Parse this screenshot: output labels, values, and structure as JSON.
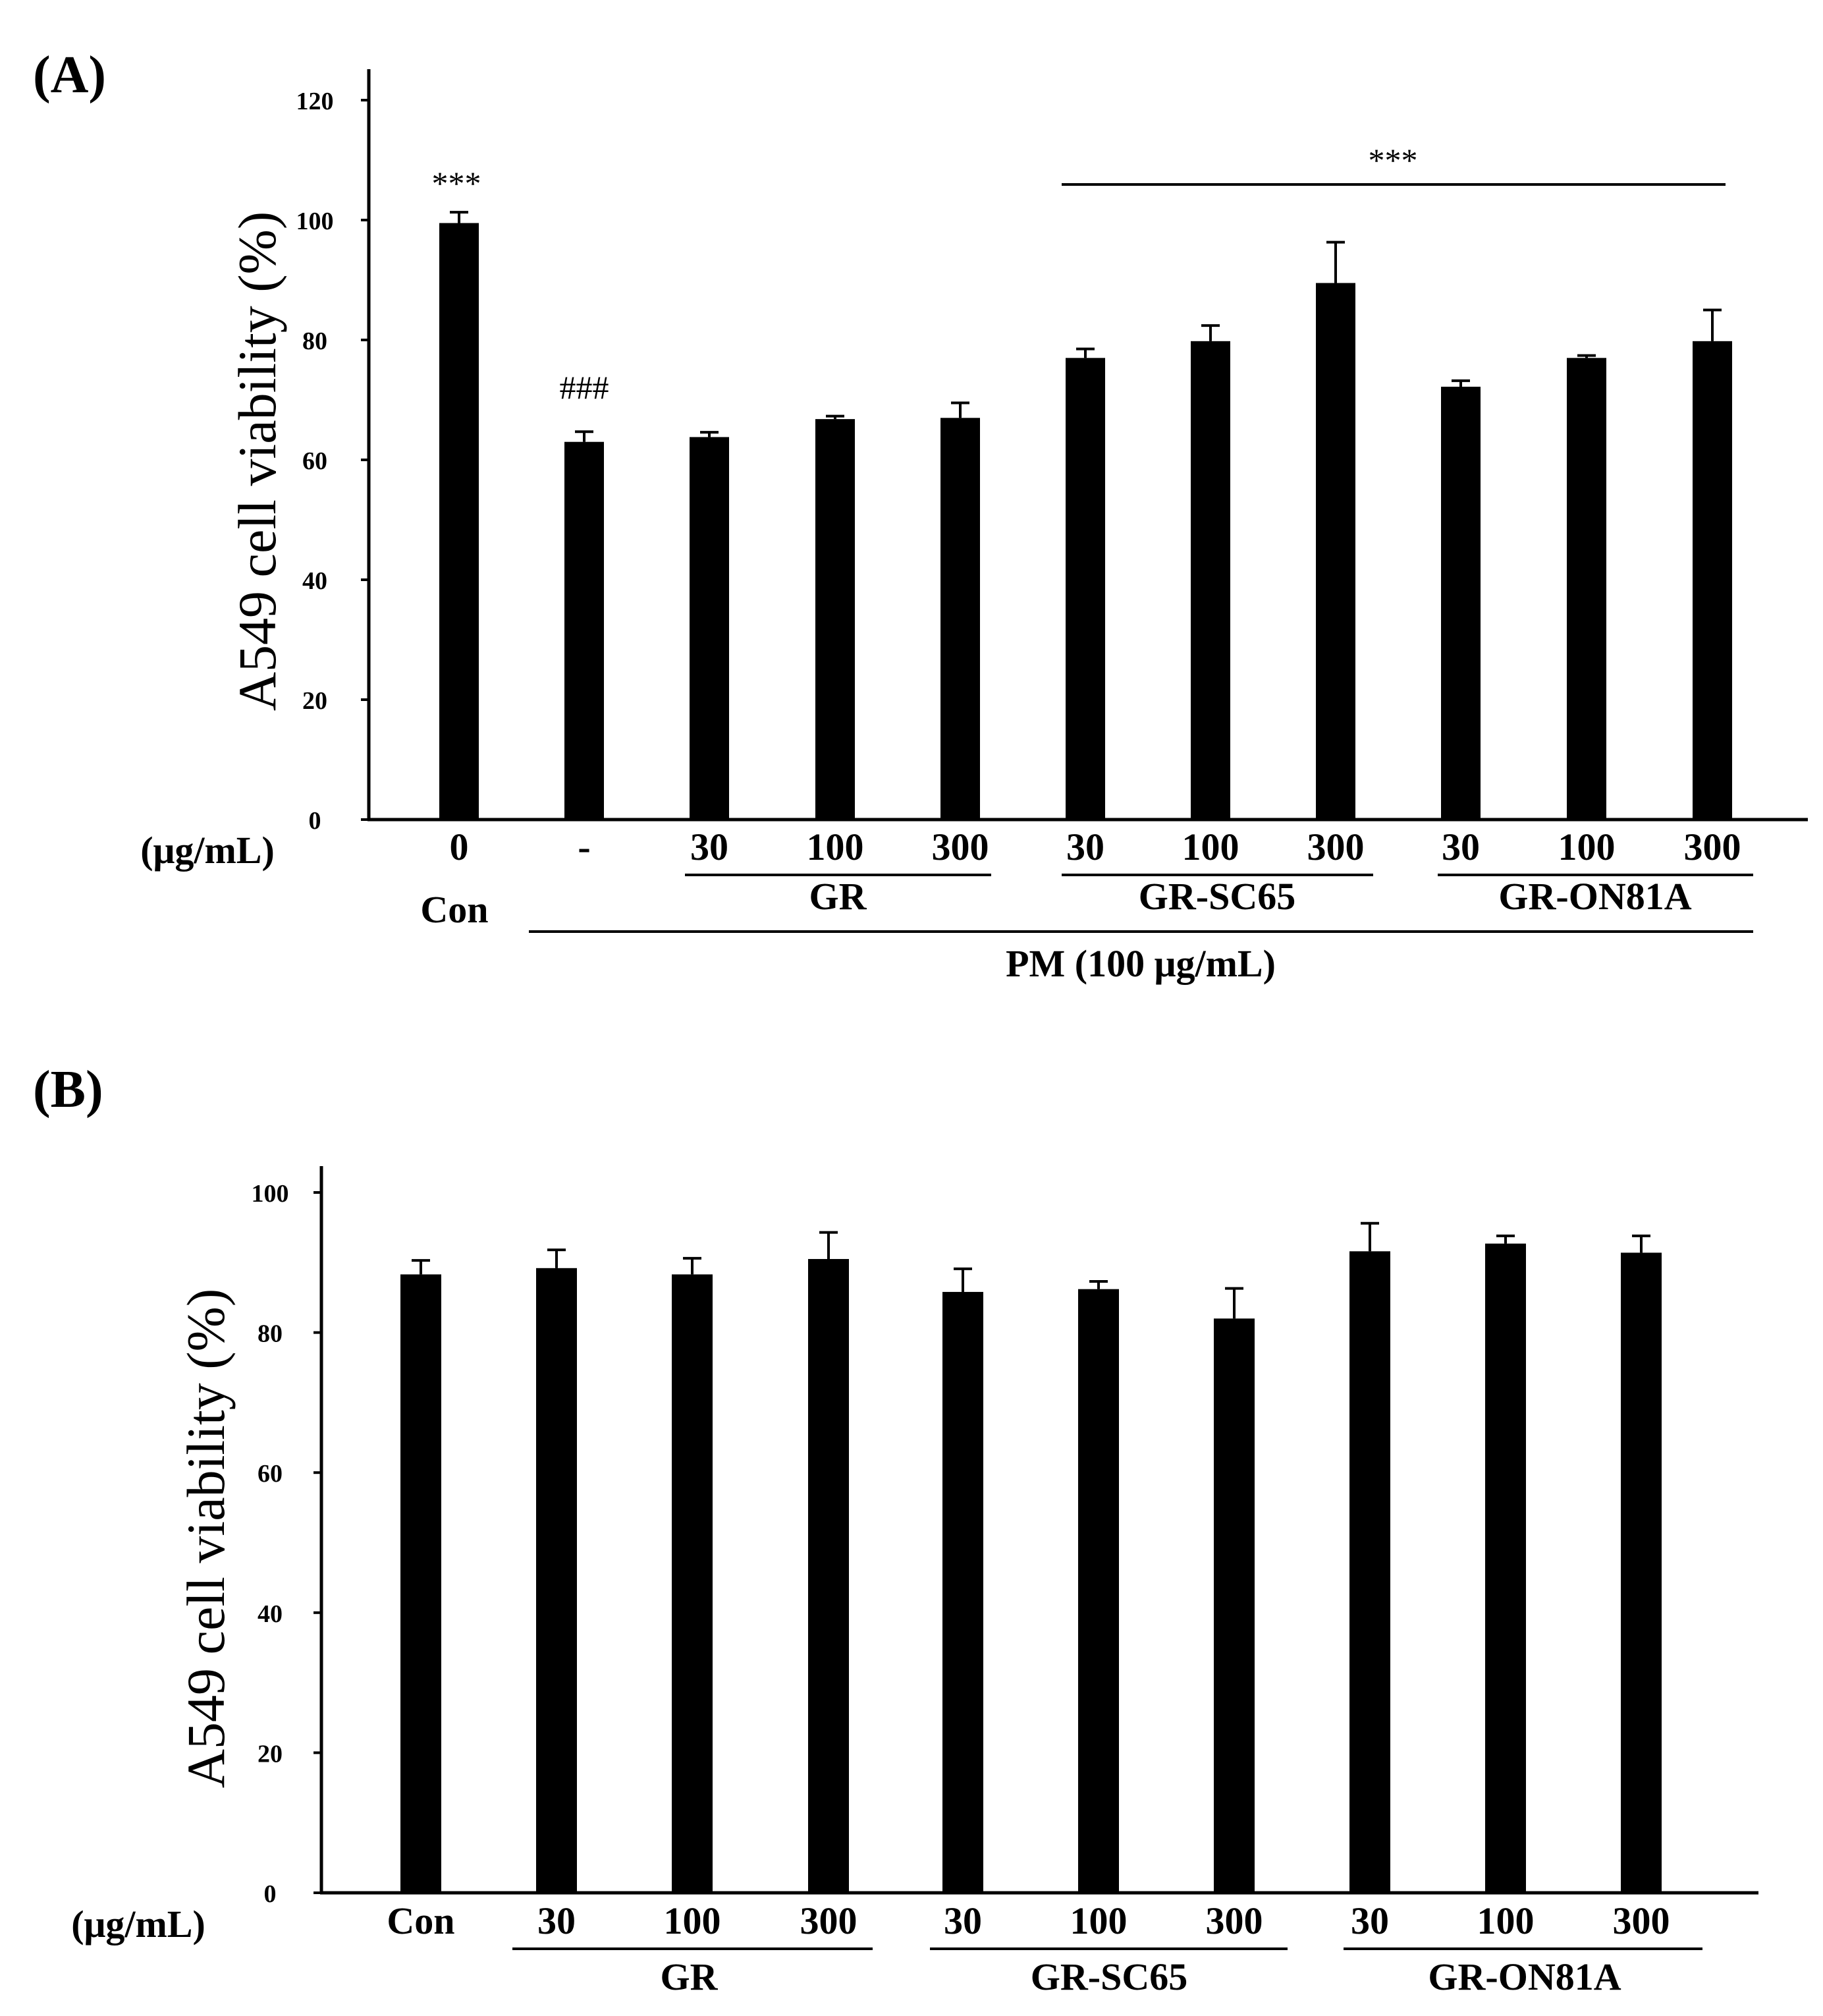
{
  "chart_data": [
    {
      "type": "bar",
      "panel": "(A)",
      "ylabel": "A549 cell viability (%)",
      "ylim": [
        0,
        120
      ],
      "yticks": [
        "0",
        "20",
        "40",
        "60",
        "80",
        "100",
        "120"
      ],
      "unit_label": "(μg/mL)",
      "categories": [
        "0",
        "-",
        "30",
        "100",
        "300",
        "30",
        "100",
        "300",
        "30",
        "100",
        "300"
      ],
      "values": [
        99.5,
        63,
        63.8,
        66.8,
        67,
        77,
        79.8,
        89.5,
        72.2,
        77,
        79.8
      ],
      "errors": [
        1.8,
        1.7,
        0.8,
        0.5,
        2.5,
        1.5,
        2.6,
        6.8,
        1.0,
        0.4,
        5.2
      ],
      "group_labels": [
        "Con",
        "GR",
        "GR-SC65",
        "GR-ON81A"
      ],
      "treatment_label": "PM (100 μg/mL)",
      "annotations": [
        {
          "text": "***",
          "target": "Con"
        },
        {
          "text": "###",
          "target": "PM only"
        },
        {
          "text": "***",
          "target": "GR-SC65 and GR-ON81A bars"
        }
      ]
    },
    {
      "type": "bar",
      "panel": "(B)",
      "ylabel": "A549 cell viability (%)",
      "ylim": [
        0,
        100
      ],
      "yticks": [
        "0",
        "20",
        "40",
        "60",
        "80",
        "100"
      ],
      "unit_label": "(μg/mL)",
      "categories": [
        "Con",
        "30",
        "100",
        "300",
        "30",
        "100",
        "300",
        "30",
        "100",
        "300"
      ],
      "values": [
        88.3,
        89.2,
        88.3,
        90.5,
        85.8,
        86.2,
        82,
        91.6,
        92.7,
        91.4
      ],
      "errors": [
        2,
        2.6,
        2.3,
        3.8,
        3.3,
        1.1,
        4.3,
        4,
        1.1,
        2.4
      ],
      "group_labels": [
        "GR",
        "GR-SC65",
        "GR-ON81A"
      ]
    }
  ]
}
